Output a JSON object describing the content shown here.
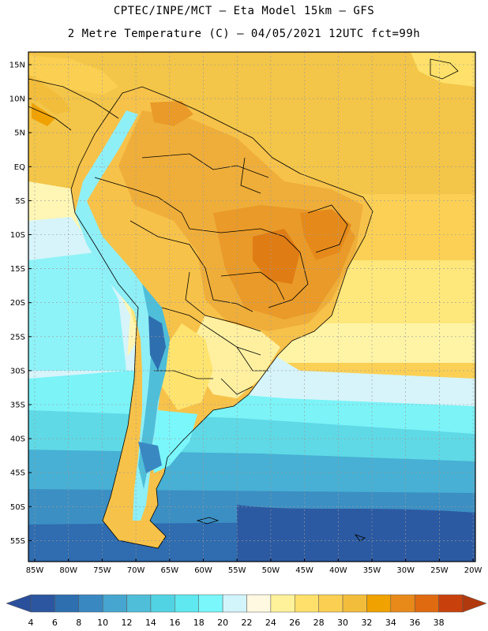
{
  "title": {
    "line1": "CPTEC/INPE/MCT –  Eta Model 15km – GFS",
    "line2": "2 Metre Temperature (C) – 04/05/2021 12UTC fct=99h"
  },
  "map": {
    "lat_labels": [
      "15N",
      "10N",
      "5N",
      "EQ",
      "5S",
      "10S",
      "15S",
      "20S",
      "25S",
      "30S",
      "35S",
      "40S",
      "45S",
      "50S",
      "55S"
    ],
    "lon_labels": [
      "85W",
      "80W",
      "75W",
      "70W",
      "65W",
      "60W",
      "55W",
      "50W",
      "45W",
      "40W",
      "35W",
      "30W",
      "25W",
      "20W"
    ]
  },
  "colorbar": {
    "ticks": [
      "4",
      "6",
      "8",
      "10",
      "12",
      "14",
      "16",
      "18",
      "20",
      "22",
      "24",
      "26",
      "28",
      "30",
      "32",
      "34",
      "36",
      "38"
    ],
    "colors": [
      "#2c57a0",
      "#2e6fb0",
      "#3a88c2",
      "#46a6cf",
      "#4fbed9",
      "#52d3e3",
      "#5fe8ef",
      "#7af7fb",
      "#d2f4fb",
      "#fef9e0",
      "#fff29a",
      "#fee06a",
      "#fbcf52",
      "#f3bd3c",
      "#f0a200",
      "#e88a1a",
      "#e06a10",
      "#c8410c"
    ],
    "low_color": "#2a4f9b",
    "high_color": "#b03a0e"
  }
}
